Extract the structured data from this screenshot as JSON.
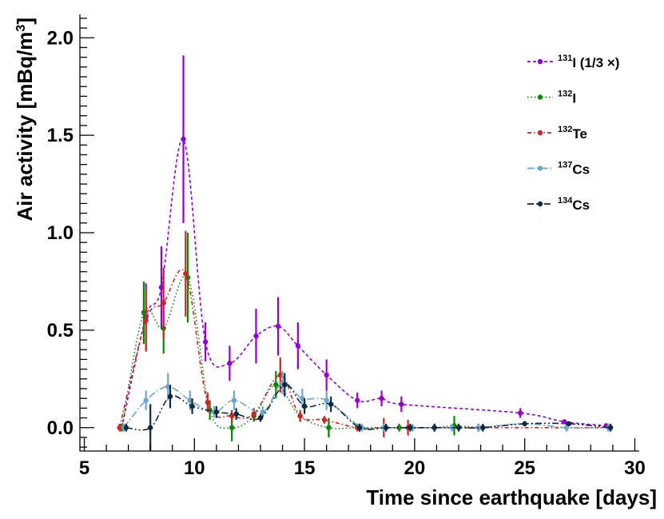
{
  "chart_data": {
    "type": "line",
    "title": "",
    "xlabel": "Time since earthquake [days]",
    "ylabel": "Air activity [mBq/m",
    "ylabel_sup": "3",
    "ylabel_end": "]",
    "xlim": [
      4.8,
      30.2
    ],
    "ylim": [
      -0.12,
      2.12
    ],
    "xticks": [
      5,
      10,
      15,
      20,
      25,
      30
    ],
    "xtick_labels": [
      "5",
      "10",
      "15",
      "20",
      "25",
      "30"
    ],
    "yticks": [
      0.0,
      0.5,
      1.0,
      1.5,
      2.0
    ],
    "ytick_labels": [
      "0.0",
      "0.5",
      "1.0",
      "1.5",
      "2.0"
    ],
    "legend_position": "top-right",
    "series": [
      {
        "name": "131I (1/3 ×)",
        "legend_sup": "131",
        "legend_text": "I (1/3 ×)",
        "color": "#9400d3",
        "dash": "4,3",
        "x": [
          6.7,
          7.8,
          8.5,
          9.5,
          10.5,
          11.6,
          12.8,
          13.8,
          14.7,
          16.0,
          17.4,
          18.5,
          19.4,
          24.8,
          26.8,
          28.7
        ],
        "y": [
          0.0,
          0.57,
          0.72,
          1.48,
          0.44,
          0.33,
          0.47,
          0.52,
          0.42,
          0.27,
          0.14,
          0.15,
          0.12,
          0.075,
          0.03,
          0.01
        ],
        "err": [
          0.02,
          0.17,
          0.21,
          0.43,
          0.1,
          0.09,
          0.14,
          0.15,
          0.12,
          0.08,
          0.04,
          0.04,
          0.04,
          0.025,
          0.01,
          0.01
        ]
      },
      {
        "name": "132I",
        "legend_sup": "132",
        "legend_text": "I",
        "color": "#008b00",
        "dash": "1.5,3",
        "x": [
          6.7,
          7.7,
          8.6,
          9.7,
          10.7,
          11.7,
          12.7,
          13.7,
          14.8,
          16.1,
          17.5,
          19.3,
          20.9,
          21.8,
          22.9
        ],
        "y": [
          0.0,
          0.59,
          0.51,
          0.77,
          0.09,
          0.0,
          0.06,
          0.22,
          0.06,
          0.0,
          0.0,
          0.0,
          0.0,
          0.01,
          0.0
        ],
        "err": [
          0.02,
          0.16,
          0.13,
          0.23,
          0.05,
          0.07,
          0.03,
          0.07,
          0.03,
          0.05,
          0.02,
          0.02,
          0.02,
          0.05,
          0.02
        ]
      },
      {
        "name": "132Te",
        "legend_sup": "132",
        "legend_text": "Te",
        "color": "#cd2626",
        "dash": "5,3,1.5,3",
        "x": [
          6.6,
          7.8,
          8.6,
          9.6,
          10.6,
          11.7,
          12.7,
          13.9,
          14.8,
          15.9,
          17.4,
          18.6,
          19.7,
          22.9,
          28.8
        ],
        "y": [
          0.0,
          0.55,
          0.64,
          0.79,
          0.13,
          0.06,
          0.07,
          0.27,
          0.06,
          0.04,
          0.0,
          0.0,
          0.0,
          0.0,
          0.0
        ],
        "err": [
          0.02,
          0.16,
          0.18,
          0.22,
          0.05,
          0.03,
          0.03,
          0.09,
          0.03,
          0.02,
          0.02,
          0.05,
          0.04,
          0.02,
          0.02
        ]
      },
      {
        "name": "137Cs",
        "legend_sup": "137",
        "legend_text": "Cs",
        "color": "#6ca6cd",
        "dash": "9,3,1.5,3",
        "x": [
          6.8,
          7.8,
          8.8,
          9.8,
          10.9,
          11.8,
          13.1,
          14.0,
          14.9,
          16.0,
          17.6,
          18.6,
          19.9,
          21.7,
          22.9,
          25.0,
          26.9,
          28.8
        ],
        "y": [
          0.0,
          0.14,
          0.21,
          0.14,
          0.08,
          0.14,
          0.08,
          0.23,
          0.15,
          0.14,
          0.0,
          0.0,
          0.0,
          0.0,
          0.0,
          0.02,
          0.0,
          0.0
        ],
        "err": [
          0.02,
          0.05,
          0.07,
          0.05,
          0.03,
          0.05,
          0.03,
          0.06,
          0.05,
          0.05,
          0.02,
          0.02,
          0.02,
          0.02,
          0.02,
          0.01,
          0.02,
          0.02
        ]
      },
      {
        "name": "134Cs",
        "legend_sup": "134",
        "legend_text": "Cs",
        "color": "#102a3c",
        "dash": "8,3,2,3,2,3",
        "x": [
          6.9,
          8.0,
          8.9,
          9.9,
          11.0,
          11.9,
          13.0,
          14.1,
          15.0,
          16.2,
          17.5,
          18.7,
          19.8,
          20.9,
          22.0,
          23.1,
          25.0,
          27.0,
          28.9
        ],
        "y": [
          0.0,
          0.0,
          0.16,
          0.11,
          0.08,
          0.07,
          0.05,
          0.22,
          0.11,
          0.12,
          0.0,
          0.0,
          0.0,
          0.0,
          0.0,
          0.0,
          0.02,
          0.02,
          0.0
        ],
        "err": [
          0.02,
          0.12,
          0.06,
          0.04,
          0.03,
          0.03,
          0.02,
          0.06,
          0.04,
          0.04,
          0.02,
          0.02,
          0.02,
          0.02,
          0.02,
          0.02,
          0.01,
          0.01,
          0.02
        ]
      }
    ]
  }
}
